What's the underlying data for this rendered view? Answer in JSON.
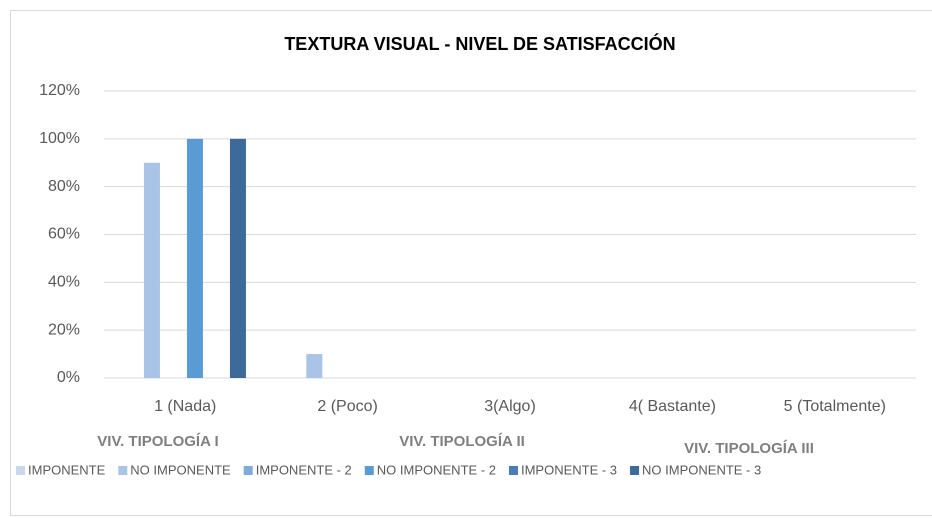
{
  "chart_data": {
    "type": "bar",
    "title": "TEXTURA VISUAL - NIVEL DE SATISFACCIÓN",
    "categories": [
      "1 (Nada)",
      "2 (Poco)",
      "3(Algo)",
      "4( Bastante)",
      "5 (Totalmente)"
    ],
    "series": [
      {
        "name": "IMPONENTE",
        "color": "#c9d8ec",
        "values": [
          0,
          0,
          0,
          0,
          0
        ]
      },
      {
        "name": "NO IMPONENTE",
        "color": "#a9c4e6",
        "values": [
          90,
          10,
          0,
          0,
          0
        ]
      },
      {
        "name": "IMPONENTE - 2",
        "color": "#7fabdb",
        "values": [
          0,
          0,
          0,
          0,
          0
        ]
      },
      {
        "name": "NO IMPONENTE - 2",
        "color": "#5b9bd5",
        "values": [
          100,
          0,
          0,
          0,
          0
        ]
      },
      {
        "name": "IMPONENTE - 3",
        "color": "#4a7db8",
        "values": [
          0,
          0,
          0,
          0,
          0
        ]
      },
      {
        "name": "NO IMPONENTE - 3",
        "color": "#3c6a9a",
        "values": [
          100,
          0,
          0,
          0,
          0
        ]
      }
    ],
    "annotations": [
      "VIV. TIPOLOGÍA I",
      "VIV. TIPOLOGÍA II",
      "VIV. TIPOLOGÍA III"
    ],
    "ylim": [
      0,
      120
    ],
    "yticks": [
      {
        "value": 0,
        "label": "0%"
      },
      {
        "value": 20,
        "label": "20%"
      },
      {
        "value": 40,
        "label": "40%"
      },
      {
        "value": 60,
        "label": "60%"
      },
      {
        "value": 80,
        "label": "80%"
      },
      {
        "value": 100,
        "label": "100%"
      },
      {
        "value": 120,
        "label": "120%"
      }
    ],
    "grid": true
  }
}
